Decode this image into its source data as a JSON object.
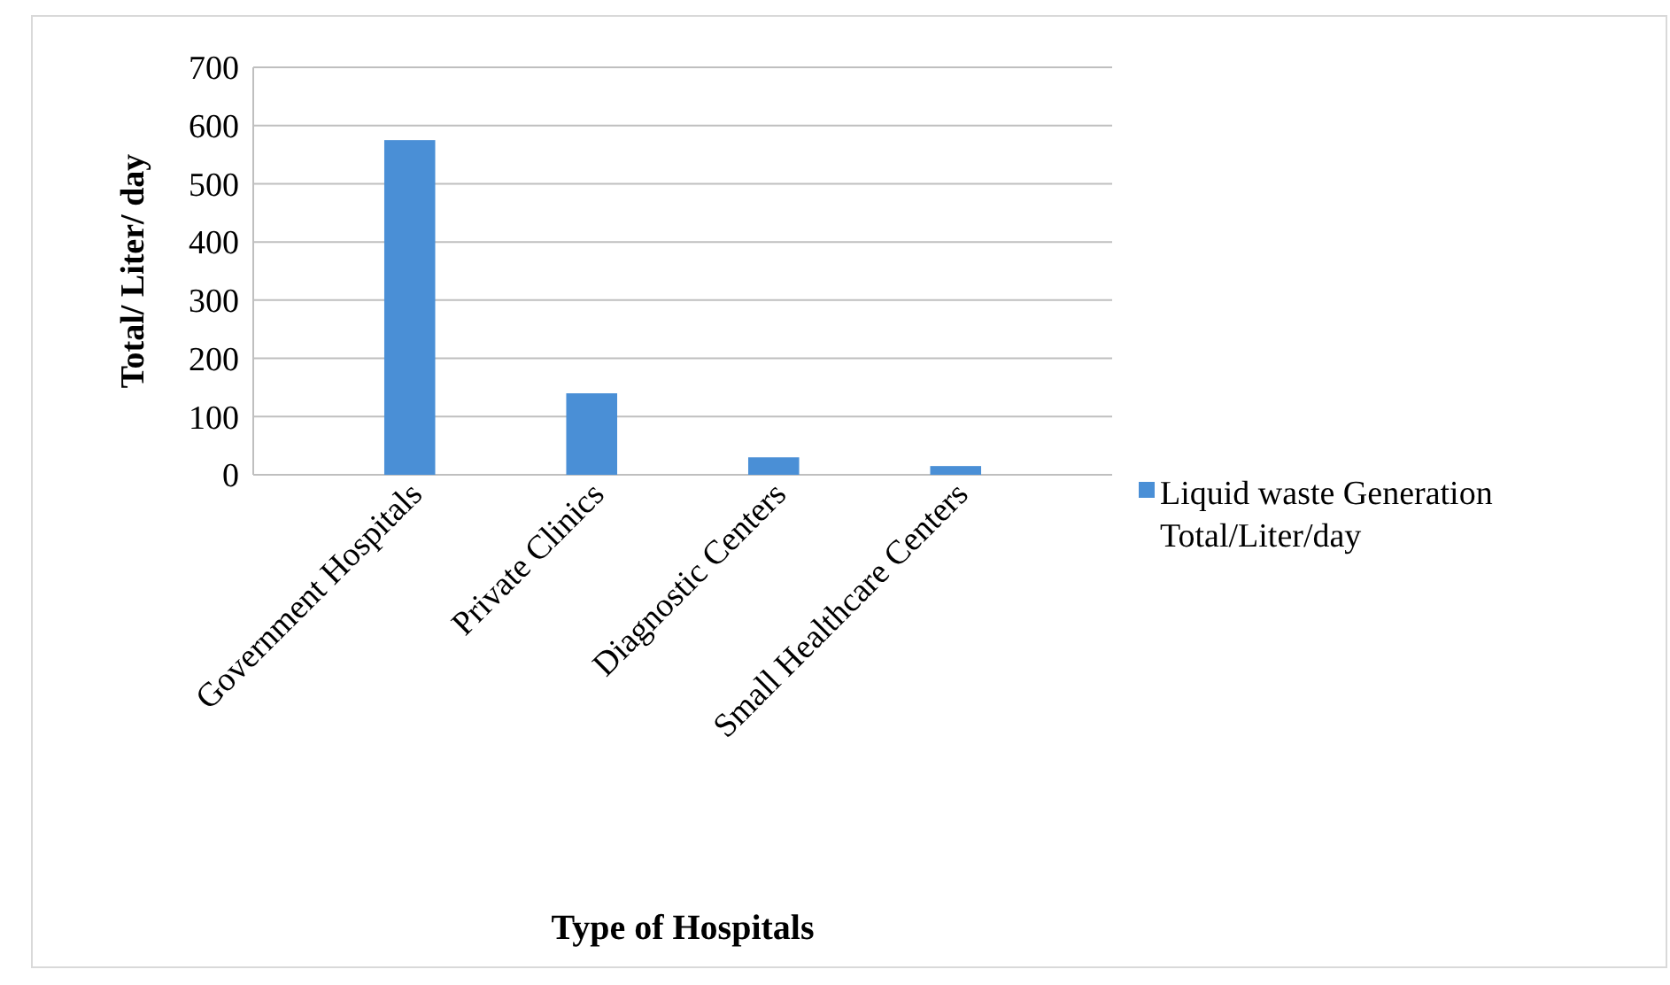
{
  "chart_data": {
    "type": "bar",
    "xlabel": "Type of Hospitals",
    "ylabel": "Total/ Liter/ day",
    "categories": [
      "Government Hospitals",
      "Private Clinics",
      "Diagnostic Centers",
      "Small Healthcare Centers"
    ],
    "series": [
      {
        "name": "Liquid waste Generation Total/Liter/day",
        "color": "#4a8fd6",
        "values": [
          575,
          140,
          30,
          15
        ]
      }
    ],
    "ylim": [
      0,
      700
    ],
    "yticks": [
      0,
      100,
      200,
      300,
      400,
      500,
      600,
      700
    ],
    "grid": "y",
    "legend": "right"
  }
}
